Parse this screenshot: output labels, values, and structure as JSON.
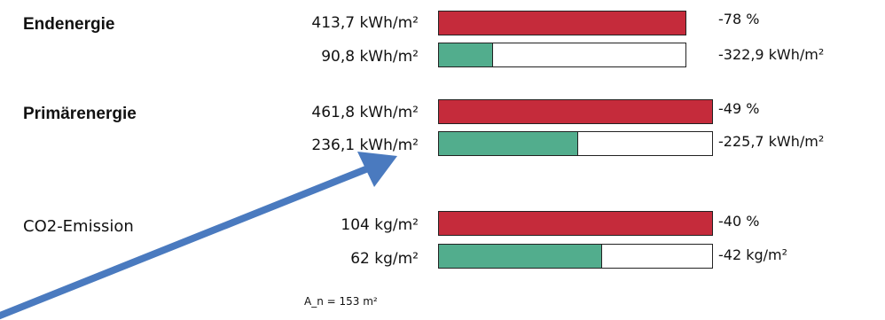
{
  "rows": [
    {
      "label": "Endenergie",
      "label_bold": true,
      "value_top": "413,7 kWh/m²",
      "value_bottom": "90,8 kWh/m²",
      "fill_top": 1.0,
      "fill_bottom": 0.219,
      "delta_top": "-78 %",
      "delta_bottom": "-322,9 kWh/m²"
    },
    {
      "label": "Primärenergie",
      "label_bold": true,
      "value_top": "461,8 kWh/m²",
      "value_bottom": "236,1 kWh/m²",
      "fill_top": 1.0,
      "fill_bottom": 0.511,
      "delta_top": "-49 %",
      "delta_bottom": "-225,7 kWh/m²"
    },
    {
      "label": "CO2-Emission",
      "label_bold": false,
      "value_top": "104 kg/m²",
      "value_bottom": "62 kg/m²",
      "fill_top": 1.0,
      "fill_bottom": 0.596,
      "delta_top": "-40 %",
      "delta_bottom": "-42 kg/m²"
    }
  ],
  "footnote": "A_n = 153 m²",
  "colors": {
    "reference_bar": "#c52b3b",
    "result_bar": "#52ad8d",
    "arrow": "#4a7abf"
  },
  "annotation_icon": "arrow-icon"
}
